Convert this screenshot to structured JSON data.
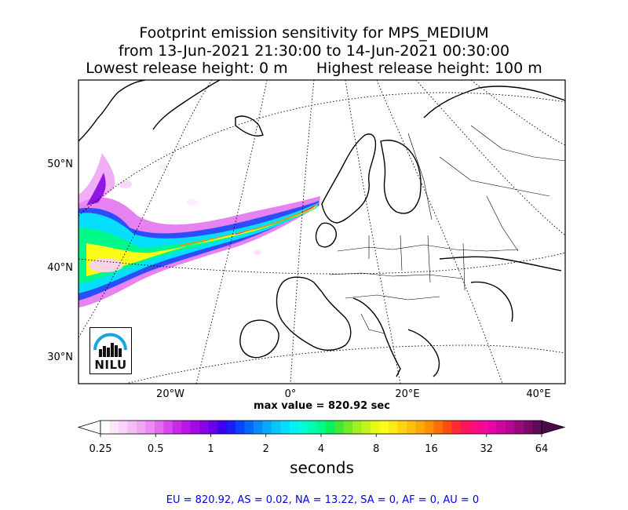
{
  "title": {
    "line1": "Footprint emission sensitivity for MPS_MEDIUM",
    "line2": "from 13-Jun-2021 21:30:00 to 14-Jun-2021 00:30:00",
    "line3": "Lowest release height: 0 m      Highest release height: 100 m"
  },
  "map": {
    "lat_labels": [
      "50°N",
      "40°N",
      "30°N"
    ],
    "lon_labels": [
      "20°W",
      "0°",
      "20°E",
      "40°E"
    ],
    "logo_text": "NILU"
  },
  "max_value_text": "max value = 820.92 sec",
  "colorbar": {
    "ticks": [
      "0.25",
      "0.5",
      "1",
      "2",
      "4",
      "8",
      "16",
      "32",
      "64"
    ],
    "label": "seconds",
    "colors": [
      "#ffffff",
      "#fde6fd",
      "#fad2fb",
      "#f6bcf8",
      "#f1a5f5",
      "#eb8af2",
      "#e26cee",
      "#d84aec",
      "#c829e8",
      "#b815e6",
      "#a20ae3",
      "#8605e4",
      "#6a00e8",
      "#4000ef",
      "#1d1df7",
      "#0a44fb",
      "#0368fc",
      "#058bfe",
      "#08aafd",
      "#07c6fd",
      "#05defc",
      "#00f2f4",
      "#00fcd8",
      "#00fbb3",
      "#00f98a",
      "#09ef5d",
      "#3fe73a",
      "#71ea25",
      "#9ef022",
      "#c3f51d",
      "#e4f91a",
      "#fbfb18",
      "#fde915",
      "#fdd411",
      "#fdbf0e",
      "#fda80b",
      "#fd8f09",
      "#fd7007",
      "#fd4d10",
      "#fc2a35",
      "#fb1658",
      "#fa0d7e",
      "#f20a98",
      "#e406a6",
      "#cf05a0",
      "#b70691",
      "#99087c",
      "#7a0b6a",
      "#5c0c59"
    ]
  },
  "regions_text": "EU = 820.92,  AS = 0.02,  NA = 13.22,  SA = 0,  AF = 0,  AU = 0"
}
